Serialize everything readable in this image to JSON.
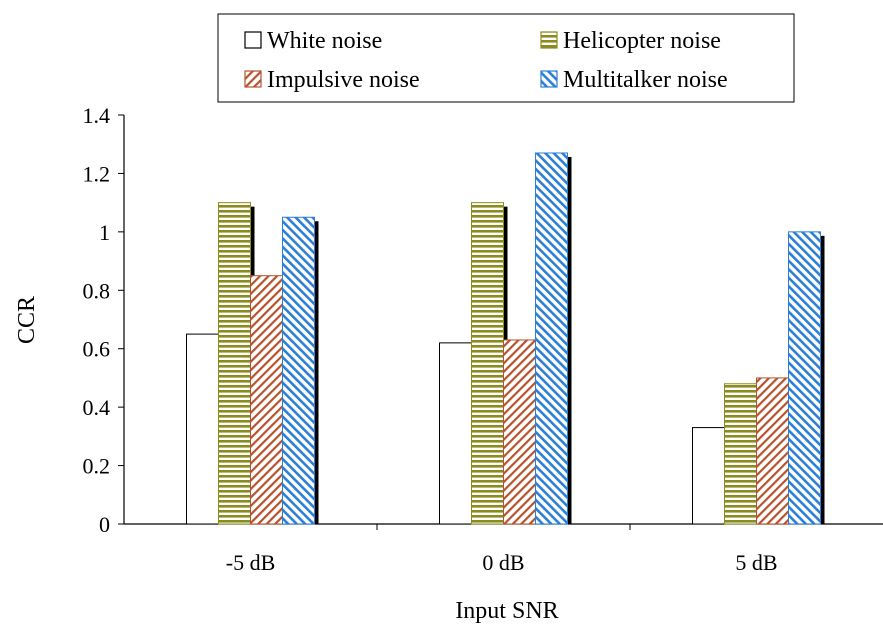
{
  "chart_data": {
    "type": "bar",
    "title": "",
    "xlabel": "Input SNR",
    "ylabel": "CCR",
    "categories": [
      "-5 dB",
      "0 dB",
      "5 dB"
    ],
    "ylim": [
      0,
      1.4
    ],
    "yticks": [
      "0",
      "0.2",
      "0.4",
      "0.6",
      "0.8",
      "1",
      "1.2",
      "1.4"
    ],
    "grid": false,
    "legend_position": "top",
    "series": [
      {
        "name": "White noise",
        "values": [
          0.65,
          0.62,
          0.33
        ],
        "pattern": "plain",
        "color": "#000000"
      },
      {
        "name": "Helicopter noise",
        "values": [
          1.1,
          1.1,
          0.48
        ],
        "pattern": "horizontal-stripes",
        "color": "#8b8b1f"
      },
      {
        "name": "Impulsive noise",
        "values": [
          0.85,
          0.63,
          0.5
        ],
        "pattern": "diagonal-hatch",
        "color": "#b5532e"
      },
      {
        "name": "Multitalker noise",
        "values": [
          1.05,
          1.27,
          1.0
        ],
        "pattern": "diagonal-hatch",
        "color": "#2d7fd6"
      }
    ]
  }
}
